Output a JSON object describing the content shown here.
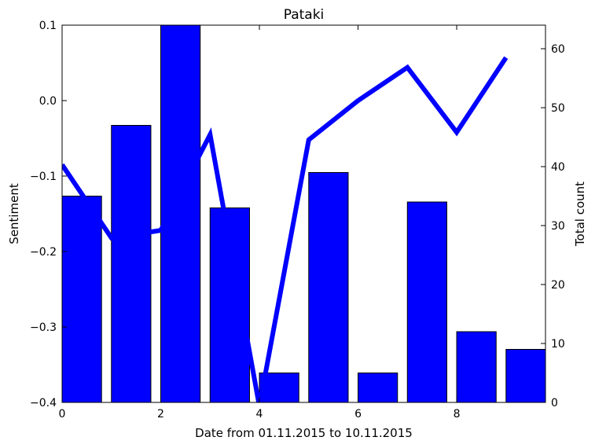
{
  "chart_data": {
    "type": "bar+line",
    "title": "Pataki",
    "xlabel": "Date from 01.11.2015 to 10.11.2015",
    "ylabel_left": "Sentiment",
    "ylabel_right": "Total count",
    "xlim": [
      0,
      9.8
    ],
    "ylim_left": [
      -0.4,
      0.1
    ],
    "ylim_right": [
      0,
      64
    ],
    "xticks": [
      0,
      2,
      4,
      6,
      8
    ],
    "xtick_labels": [
      "0",
      "2",
      "4",
      "6",
      "8"
    ],
    "yticks_left": [
      -0.4,
      -0.3,
      -0.2,
      -0.1,
      0.0,
      0.1
    ],
    "ytick_labels_left": [
      "−0.4",
      "−0.3",
      "−0.2",
      "−0.1",
      "0.0",
      "0.1"
    ],
    "yticks_right": [
      0,
      10,
      20,
      30,
      40,
      50,
      60
    ],
    "ytick_labels_right": [
      "0",
      "10",
      "20",
      "30",
      "40",
      "50",
      "60"
    ],
    "grid": false,
    "legend": "none",
    "bar_color": "#0000ff",
    "line_color": "#0000ff",
    "bars": {
      "axis": "right",
      "x": [
        0,
        1,
        2,
        3,
        4,
        5,
        6,
        7,
        8,
        9
      ],
      "width": 0.8,
      "values": [
        35,
        47,
        64,
        33,
        5,
        39,
        5,
        34,
        12,
        9
      ]
    },
    "line": {
      "axis": "left",
      "x": [
        0,
        1,
        2,
        3,
        4,
        5,
        6,
        7,
        8,
        9
      ],
      "values": [
        -0.085,
        -0.182,
        -0.172,
        -0.045,
        -0.405,
        -0.052,
        0.0,
        0.044,
        -0.042,
        0.057
      ]
    }
  }
}
